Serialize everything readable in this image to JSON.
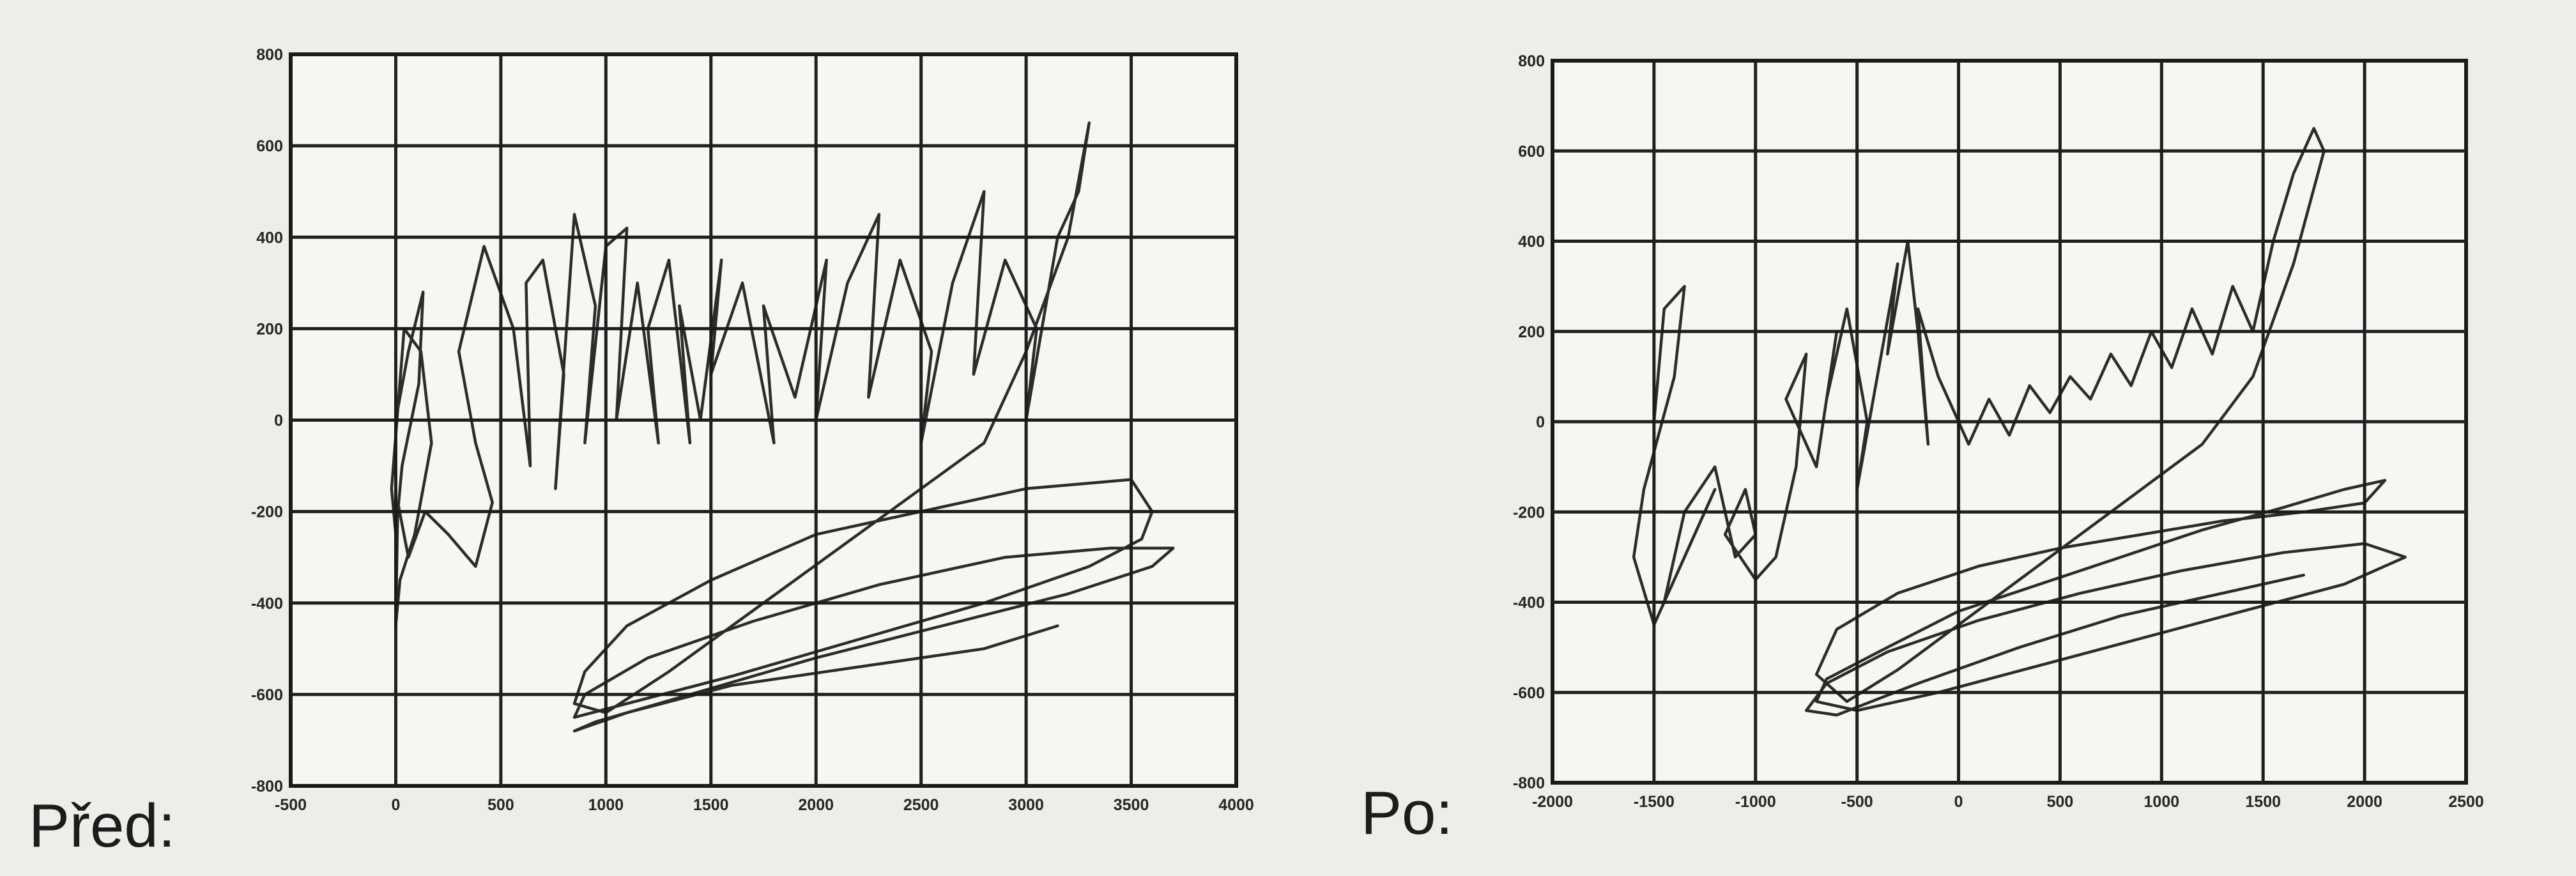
{
  "panels": [
    {
      "label": "Před:"
    },
    {
      "label": "Po:"
    }
  ],
  "chart_data": [
    {
      "type": "line",
      "title": "",
      "xlabel": "",
      "ylabel": "",
      "xlim": [
        -500,
        4000
      ],
      "ylim": [
        -800,
        800
      ],
      "xticks": [
        -500,
        0,
        500,
        1000,
        1500,
        2000,
        2500,
        3000,
        3500,
        4000
      ],
      "yticks": [
        -800,
        -600,
        -400,
        -200,
        0,
        200,
        400,
        600,
        800
      ],
      "grid": true,
      "series": [
        {
          "x": [
            0,
            60,
            130,
            110,
            30,
            0,
            -20,
            40,
            120,
            170,
            90,
            20,
            0,
            10,
            60,
            140,
            250,
            380,
            460,
            380,
            300,
            420,
            560,
            640,
            620,
            700,
            800,
            760,
            850,
            950,
            900,
            1000,
            1100,
            1050,
            1150,
            1250,
            1200,
            1300,
            1400,
            1350,
            1450,
            1550,
            1500,
            1650,
            1800,
            1750,
            1900,
            2050,
            2000,
            2150,
            2300,
            2250,
            2400,
            2550,
            2500,
            2650,
            2800,
            2750,
            2900,
            3050,
            3000,
            3150,
            3250,
            3300,
            3200,
            3000,
            2800,
            2500,
            2200,
            1900,
            1600,
            1300,
            1000,
            850,
            900,
            1100,
            1500,
            2000,
            2500,
            3000,
            3500,
            3600,
            3550,
            3300,
            2800,
            2200,
            1600,
            1100,
            850,
            900,
            1200,
            1700,
            2300,
            2900,
            3400,
            3700,
            3600,
            3200,
            2600,
            2000,
            1400,
            950,
            850,
            1100,
            1600,
            2200,
            2800,
            3150
          ],
          "y": [
            0,
            150,
            280,
            80,
            -100,
            -250,
            -150,
            200,
            150,
            -50,
            -250,
            -350,
            -450,
            -180,
            -300,
            -200,
            -250,
            -320,
            -180,
            -50,
            150,
            380,
            200,
            -100,
            300,
            350,
            100,
            -150,
            450,
            250,
            -50,
            380,
            420,
            0,
            300,
            -50,
            200,
            350,
            -50,
            250,
            0,
            350,
            100,
            300,
            -50,
            250,
            50,
            350,
            0,
            300,
            450,
            50,
            350,
            150,
            -50,
            300,
            500,
            100,
            350,
            200,
            0,
            400,
            500,
            650,
            400,
            150,
            -50,
            -150,
            -250,
            -350,
            -450,
            -550,
            -640,
            -620,
            -550,
            -450,
            -350,
            -250,
            -200,
            -150,
            -130,
            -200,
            -260,
            -320,
            -400,
            -480,
            -560,
            -620,
            -650,
            -600,
            -520,
            -440,
            -360,
            -300,
            -280,
            -280,
            -320,
            -380,
            -450,
            -520,
            -600,
            -660,
            -680,
            -640,
            -580,
            -540,
            -500,
            -450
          ]
        }
      ]
    },
    {
      "type": "line",
      "title": "",
      "xlabel": "",
      "ylabel": "",
      "xlim": [
        -2000,
        2500
      ],
      "ylim": [
        -800,
        800
      ],
      "xticks": [
        -2000,
        -1500,
        -1000,
        -500,
        0,
        500,
        1000,
        1500,
        2000,
        2500
      ],
      "yticks": [
        -800,
        -600,
        -400,
        -200,
        0,
        200,
        400,
        600,
        800
      ],
      "grid": true,
      "series": [
        {
          "x": [
            -1500,
            -1450,
            -1350,
            -1400,
            -1550,
            -1600,
            -1500,
            -1300,
            -1200,
            -1350,
            -1450,
            -1350,
            -1200,
            -1100,
            -1000,
            -1050,
            -1150,
            -1000,
            -900,
            -800,
            -750,
            -850,
            -700,
            -600,
            -650,
            -550,
            -450,
            -500,
            -400,
            -300,
            -350,
            -250,
            -200,
            -150,
            -200,
            -100,
            0,
            50,
            150,
            250,
            350,
            450,
            550,
            650,
            750,
            850,
            950,
            1050,
            1150,
            1250,
            1350,
            1450,
            1550,
            1650,
            1750,
            1800,
            1650,
            1450,
            1200,
            900,
            600,
            300,
            0,
            -300,
            -550,
            -700,
            -600,
            -300,
            100,
            500,
            900,
            1300,
            1700,
            2000,
            2100,
            1900,
            1600,
            1200,
            800,
            400,
            0,
            -350,
            -650,
            -700,
            -500,
            -100,
            400,
            900,
            1400,
            1900,
            2200,
            2000,
            1600,
            1100,
            600,
            100,
            -350,
            -650,
            -750,
            -600,
            -200,
            300,
            800,
            1300,
            1700
          ],
          "y": [
            0,
            250,
            300,
            100,
            -150,
            -300,
            -450,
            -250,
            -150,
            -300,
            -400,
            -200,
            -100,
            -300,
            -250,
            -150,
            -250,
            -350,
            -300,
            -100,
            150,
            50,
            -100,
            200,
            50,
            250,
            0,
            -150,
            100,
            350,
            150,
            400,
            200,
            -50,
            250,
            100,
            0,
            -50,
            50,
            -30,
            80,
            20,
            100,
            50,
            150,
            80,
            200,
            120,
            250,
            150,
            300,
            200,
            400,
            550,
            650,
            600,
            350,
            100,
            -50,
            -150,
            -250,
            -350,
            -450,
            -550,
            -620,
            -560,
            -460,
            -380,
            -320,
            -280,
            -250,
            -220,
            -200,
            -180,
            -130,
            -150,
            -190,
            -240,
            -300,
            -360,
            -420,
            -500,
            -570,
            -620,
            -640,
            -600,
            -540,
            -480,
            -420,
            -360,
            -300,
            -270,
            -290,
            -330,
            -380,
            -440,
            -510,
            -580,
            -640,
            -650,
            -580,
            -500,
            -430,
            -380,
            -340
          ]
        }
      ]
    }
  ]
}
